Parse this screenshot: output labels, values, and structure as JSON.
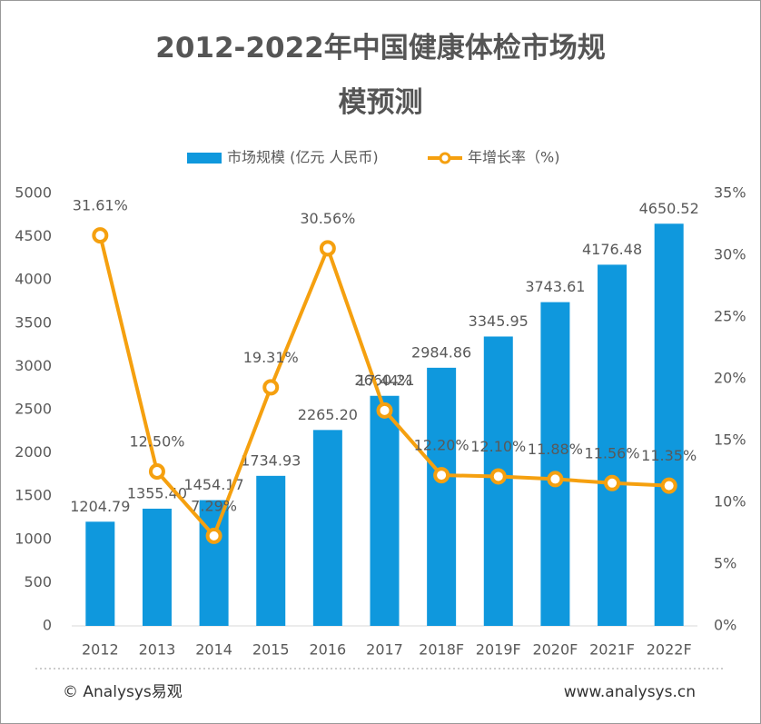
{
  "chart_data": {
    "type": "bar_line",
    "title": "2012-2022年中国健康体检市场规模预测",
    "categories": [
      "2012",
      "2013",
      "2014",
      "2015",
      "2016",
      "2017",
      "2018F",
      "2019F",
      "2020F",
      "2021F",
      "2022F"
    ],
    "series": [
      {
        "name": "市场规模 (亿元 人民币)",
        "type": "bar",
        "color": "#0f98dd",
        "values": [
          1204.79,
          1355.4,
          1454.17,
          1734.93,
          2265.2,
          2660.21,
          2984.86,
          3345.95,
          3743.61,
          4176.48,
          4650.52
        ],
        "value_labels": [
          "1204.79",
          "1355.40",
          "1454.17",
          "1734.93",
          "2265.20",
          "2660.21",
          "2984.86",
          "3345.95",
          "3743.61",
          "4176.48",
          "4650.52"
        ]
      },
      {
        "name": "年增长率（%)",
        "type": "line",
        "axis": "y2",
        "color": "#f5a00f",
        "values": [
          31.61,
          12.5,
          7.29,
          19.31,
          30.56,
          17.44,
          12.2,
          12.1,
          11.88,
          11.56,
          11.35
        ],
        "value_labels": [
          "31.61%",
          "12.50%",
          "7.29%",
          "19.31%",
          "30.56%",
          "17.44%",
          "12.20%",
          "12.10%",
          "11.88%",
          "11.56%",
          "11.35%"
        ]
      }
    ],
    "ylim": [
      0,
      5000
    ],
    "yticks": [
      0,
      500,
      1000,
      1500,
      2000,
      2500,
      3000,
      3500,
      4000,
      4500,
      5000
    ],
    "y2lim": [
      0,
      35
    ],
    "y2ticks": [
      {
        "value": 0,
        "label": "0%"
      },
      {
        "value": 5,
        "label": "5%"
      },
      {
        "value": 10,
        "label": "10%"
      },
      {
        "value": 15,
        "label": "15%"
      },
      {
        "value": 20,
        "label": "20%"
      },
      {
        "value": 25,
        "label": "25%"
      },
      {
        "value": 30,
        "label": "30%"
      },
      {
        "value": 35,
        "label": "35%"
      }
    ],
    "footer_left": "© Analysys易观",
    "footer_right": "www.analysys.cn"
  }
}
